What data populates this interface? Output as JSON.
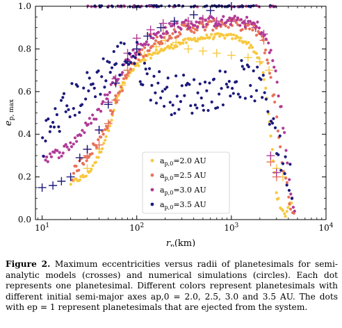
{
  "chart_data": {
    "type": "scatter",
    "title": "",
    "xlabel": "r",
    "xlabel_sub": "p",
    "xlabel_unit": "(km)",
    "ylabel": "e",
    "ylabel_sub": "p, max",
    "xscale": "log",
    "xlim": [
      8.5,
      10000
    ],
    "ylim": [
      0.0,
      1.0
    ],
    "x_ticks": [
      {
        "value": 10,
        "base": "10",
        "exp": "1"
      },
      {
        "value": 100,
        "base": "10",
        "exp": "2"
      },
      {
        "value": 1000,
        "base": "10",
        "exp": "3"
      },
      {
        "value": 10000,
        "base": "10",
        "exp": "4"
      }
    ],
    "y_ticks": [
      "0.0",
      "0.2",
      "0.4",
      "0.6",
      "0.8",
      "1.0"
    ],
    "y_tick_values": [
      0.0,
      0.2,
      0.4,
      0.6,
      0.8,
      1.0
    ],
    "grid": false,
    "legend_position": "lower-center",
    "series": [
      {
        "name": "ap,0=2.0 AU",
        "name_var": "a",
        "name_sub": "p,0",
        "name_value": "=2.0 AU",
        "color": "#f8c840",
        "simulation_points": [
          [
            20,
            0.17
          ],
          [
            30,
            0.21
          ],
          [
            40,
            0.3
          ],
          [
            50,
            0.42
          ],
          [
            60,
            0.55
          ],
          [
            70,
            0.62
          ],
          [
            80,
            0.67
          ],
          [
            100,
            0.72
          ],
          [
            130,
            0.76
          ],
          [
            170,
            0.79
          ],
          [
            230,
            0.81
          ],
          [
            300,
            0.83
          ],
          [
            400,
            0.845
          ],
          [
            550,
            0.855
          ],
          [
            700,
            0.86
          ],
          [
            900,
            0.86
          ],
          [
            1100,
            0.855
          ],
          [
            1400,
            0.835
          ],
          [
            1700,
            0.8
          ],
          [
            2000,
            0.75
          ],
          [
            2200,
            0.67
          ],
          [
            2400,
            0.55
          ],
          [
            2600,
            0.4
          ],
          [
            2800,
            0.26
          ],
          [
            3000,
            0.12
          ],
          [
            3300,
            0.05
          ],
          [
            3700,
            0.02
          ],
          [
            4000,
            0.06
          ],
          [
            4500,
            0.1
          ]
        ],
        "model_points": [
          [
            30,
            0.24
          ],
          [
            40,
            0.33
          ],
          [
            50,
            0.45
          ],
          [
            60,
            0.56
          ],
          [
            70,
            0.63
          ],
          [
            80,
            0.7
          ],
          [
            120,
            0.77
          ],
          [
            160,
            0.81
          ],
          [
            200,
            0.84
          ],
          [
            260,
            0.83
          ],
          [
            350,
            0.8
          ],
          [
            500,
            0.79
          ],
          [
            700,
            0.78
          ],
          [
            1000,
            0.77
          ],
          [
            1500,
            0.76
          ],
          [
            2000,
            0.74
          ],
          [
            2500,
            0.7
          ],
          [
            3000,
            0.24
          ],
          [
            3500,
            0.2
          ]
        ]
      },
      {
        "name": "ap,0=2.5 AU",
        "name_var": "a",
        "name_sub": "p,0",
        "name_value": "=2.5 AU",
        "color": "#e8735b",
        "simulation_points": [
          [
            20,
            0.2
          ],
          [
            25,
            0.26
          ],
          [
            30,
            0.3
          ],
          [
            40,
            0.37
          ],
          [
            50,
            0.46
          ],
          [
            60,
            0.56
          ],
          [
            80,
            0.68
          ],
          [
            100,
            0.76
          ],
          [
            130,
            0.8
          ],
          [
            170,
            0.84
          ],
          [
            230,
            0.87
          ],
          [
            300,
            0.89
          ],
          [
            400,
            0.9
          ],
          [
            600,
            0.91
          ],
          [
            800,
            0.92
          ],
          [
            1000,
            0.92
          ],
          [
            1300,
            0.91
          ],
          [
            1600,
            0.9
          ],
          [
            2000,
            0.87
          ],
          [
            2300,
            0.79
          ],
          [
            2600,
            0.67
          ],
          [
            2900,
            0.53
          ],
          [
            3200,
            0.38
          ],
          [
            3600,
            0.22
          ],
          [
            4000,
            0.12
          ],
          [
            4300,
            0.05
          ],
          [
            4700,
            0.03
          ]
        ],
        "model_points": [
          [
            30,
            0.3
          ],
          [
            40,
            0.35
          ],
          [
            50,
            0.45
          ],
          [
            60,
            0.56
          ],
          [
            80,
            0.7
          ],
          [
            100,
            0.8
          ],
          [
            140,
            0.87
          ],
          [
            190,
            0.9
          ],
          [
            250,
            0.92
          ],
          [
            350,
            0.92
          ],
          [
            500,
            0.93
          ],
          [
            700,
            0.93
          ],
          [
            1000,
            0.93
          ],
          [
            1400,
            0.92
          ],
          [
            1800,
            0.9
          ],
          [
            2200,
            0.84
          ],
          [
            2600,
            0.27
          ],
          [
            3000,
            0.2
          ]
        ]
      },
      {
        "name": "ap,0=3.0 AU",
        "name_var": "a",
        "name_sub": "p,0",
        "name_value": "=3.0 AU",
        "color": "#b03a96",
        "simulation_points": [
          [
            10,
            0.29
          ],
          [
            13,
            0.3
          ],
          [
            16,
            0.32
          ],
          [
            20,
            0.35
          ],
          [
            25,
            0.4
          ],
          [
            30,
            0.44
          ],
          [
            40,
            0.51
          ],
          [
            50,
            0.6
          ],
          [
            60,
            0.66
          ],
          [
            80,
            0.75
          ],
          [
            100,
            0.8
          ],
          [
            130,
            0.84
          ],
          [
            170,
            0.87
          ],
          [
            230,
            0.9
          ],
          [
            300,
            0.91
          ],
          [
            400,
            0.92
          ],
          [
            600,
            0.93
          ],
          [
            800,
            0.93
          ],
          [
            1000,
            0.93
          ],
          [
            1300,
            0.93
          ],
          [
            1600,
            0.92
          ],
          [
            2000,
            0.9
          ],
          [
            2300,
            0.85
          ],
          [
            2600,
            0.78
          ],
          [
            2900,
            0.7
          ],
          [
            3200,
            0.58
          ],
          [
            3600,
            0.41
          ],
          [
            4000,
            0.22
          ],
          [
            4300,
            0.1
          ],
          [
            4700,
            0.04
          ]
        ],
        "model_points": [
          [
            30,
            0.33
          ],
          [
            40,
            0.42
          ],
          [
            50,
            0.55
          ],
          [
            60,
            0.66
          ],
          [
            80,
            0.78
          ],
          [
            100,
            0.85
          ],
          [
            140,
            0.89
          ],
          [
            190,
            0.92
          ],
          [
            250,
            0.92
          ],
          [
            350,
            0.93
          ],
          [
            500,
            0.94
          ],
          [
            700,
            0.93
          ],
          [
            1000,
            0.93
          ],
          [
            1400,
            0.92
          ],
          [
            1800,
            0.9
          ],
          [
            2200,
            0.87
          ],
          [
            2600,
            0.3
          ],
          [
            3000,
            0.22
          ]
        ]
      },
      {
        "name": "ap,0=3.5 AU",
        "name_var": "a",
        "name_sub": "p,0",
        "name_value": "=3.5 AU",
        "color": "#1c1a7a",
        "simulation_points": [
          [
            10,
            0.38
          ],
          [
            13,
            0.44
          ],
          [
            16,
            0.5
          ],
          [
            20,
            0.55
          ],
          [
            25,
            0.58
          ],
          [
            30,
            0.61
          ],
          [
            40,
            0.66
          ],
          [
            50,
            0.72
          ],
          [
            60,
            0.74
          ],
          [
            80,
            0.78
          ],
          [
            100,
            0.75
          ],
          [
            130,
            0.66
          ],
          [
            170,
            0.62
          ],
          [
            230,
            0.58
          ],
          [
            300,
            0.6
          ],
          [
            400,
            0.58
          ],
          [
            600,
            0.6
          ],
          [
            800,
            0.62
          ],
          [
            1000,
            0.64
          ],
          [
            1300,
            0.66
          ],
          [
            1600,
            0.64
          ],
          [
            2000,
            0.62
          ],
          [
            2300,
            0.58
          ],
          [
            2600,
            0.5
          ],
          [
            2900,
            0.42
          ],
          [
            3200,
            0.32
          ],
          [
            3600,
            0.25
          ],
          [
            4000,
            0.2
          ],
          [
            4500,
            0.17
          ]
        ],
        "model_points": [
          [
            10,
            0.15
          ],
          [
            13,
            0.16
          ],
          [
            16,
            0.18
          ],
          [
            20,
            0.2
          ],
          [
            25,
            0.29
          ],
          [
            30,
            0.33
          ],
          [
            40,
            0.42
          ],
          [
            50,
            0.54
          ],
          [
            60,
            0.64
          ],
          [
            80,
            0.74
          ],
          [
            100,
            0.8
          ],
          [
            130,
            0.86
          ],
          [
            180,
            0.9
          ],
          [
            250,
            0.93
          ],
          [
            400,
            0.96
          ],
          [
            600,
            0.98
          ],
          [
            1000,
            1.0
          ]
        ]
      }
    ],
    "ejected": {
      "e": 1.0
    }
  },
  "caption": {
    "label": "Figure 2.",
    "text": "Maximum eccentricities versus radii of planetesimals for semi-analytic models (crosses) and numerical simulations (circles). Each dot represents one planetesimal. Different colors represent planetesimals with different initial semi-major axes ap,0 = 2.0, 2.5, 3.0 and 3.5 AU. The dots with ep = 1 represent planetesimals that are ejected from the system."
  }
}
